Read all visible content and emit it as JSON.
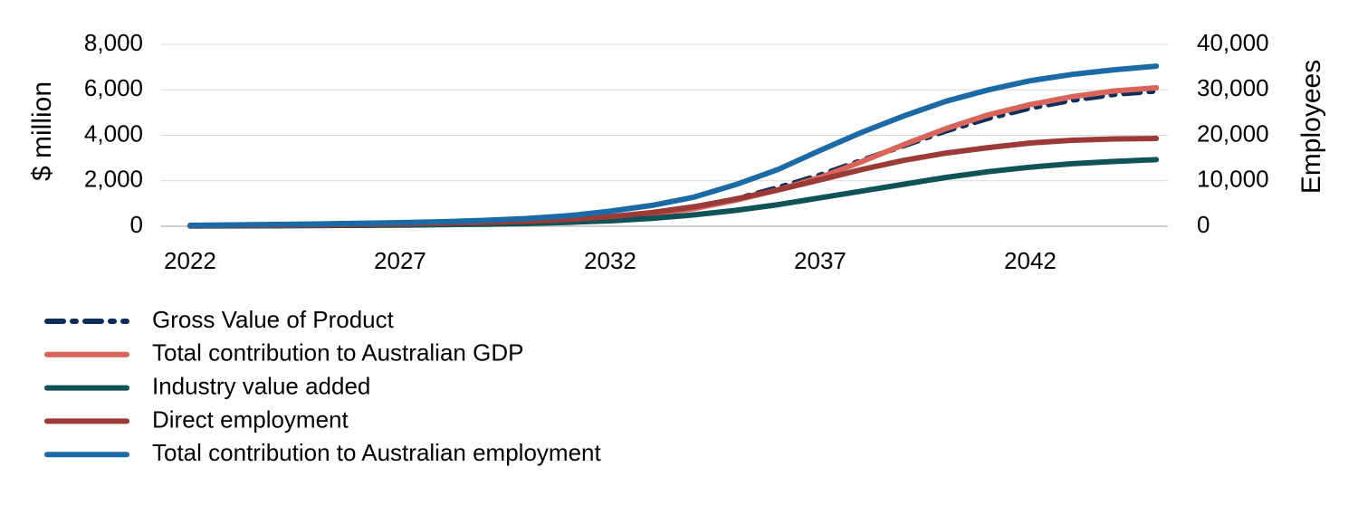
{
  "chart_data": {
    "type": "line",
    "x": [
      2022,
      2023,
      2024,
      2025,
      2026,
      2027,
      2028,
      2029,
      2030,
      2031,
      2032,
      2033,
      2034,
      2035,
      2036,
      2037,
      2038,
      2039,
      2040,
      2041,
      2042,
      2043,
      2044,
      2045
    ],
    "xlim": [
      2021.3,
      2045.6
    ],
    "xticks": [
      2022,
      2027,
      2032,
      2037,
      2042
    ],
    "ylim": [
      0,
      8000
    ],
    "yticks": [
      {
        "value": 0,
        "label": "0"
      },
      {
        "value": 2000,
        "label": "2,000"
      },
      {
        "value": 4000,
        "label": "4,000"
      },
      {
        "value": 6000,
        "label": "6,000"
      },
      {
        "value": 8000,
        "label": "8,000"
      }
    ],
    "y2lim": [
      0,
      40000
    ],
    "y2ticks": [
      {
        "value": 0,
        "label": "0"
      },
      {
        "value": 10000,
        "label": "10,000"
      },
      {
        "value": 20000,
        "label": "20,000"
      },
      {
        "value": 30000,
        "label": "30,000"
      },
      {
        "value": 40000,
        "label": "40,000"
      }
    ],
    "ylabel": "$ million",
    "y2label": "Employees",
    "grid": true,
    "series": [
      {
        "name": "Gross Value of Product",
        "color": "#0d2d5a",
        "line_style": "dash-dot",
        "values": [
          20,
          30,
          40,
          50,
          60,
          80,
          100,
          130,
          170,
          240,
          350,
          520,
          800,
          1200,
          1700,
          2250,
          2900,
          3550,
          4200,
          4750,
          5200,
          5550,
          5800,
          5950
        ]
      },
      {
        "name": "Total contribution to Australian GDP",
        "color": "#d9655a",
        "line_style": "solid",
        "values": [
          20,
          30,
          40,
          50,
          60,
          80,
          100,
          130,
          170,
          240,
          350,
          520,
          780,
          1150,
          1600,
          2150,
          2850,
          3600,
          4300,
          4900,
          5350,
          5700,
          5950,
          6090
        ]
      },
      {
        "name": "Industry value added",
        "color": "#0f5257",
        "line_style": "solid",
        "values": [
          10,
          15,
          20,
          30,
          40,
          50,
          70,
          90,
          120,
          170,
          240,
          350,
          500,
          700,
          950,
          1250,
          1550,
          1850,
          2150,
          2400,
          2600,
          2750,
          2850,
          2930
        ]
      },
      {
        "name": "Direct employment",
        "color": "#9b3a36",
        "line_style": "solid",
        "axis": "y2",
        "values": [
          100,
          150,
          200,
          300,
          400,
          500,
          650,
          850,
          1100,
          1500,
          2100,
          3000,
          4300,
          6000,
          8000,
          10200,
          12500,
          14500,
          16100,
          17300,
          18300,
          18900,
          19200,
          19300
        ]
      },
      {
        "name": "Total contribution to Australian employment",
        "color": "#1a6aa6",
        "line_style": "solid",
        "axis": "y2",
        "values": [
          200,
          300,
          400,
          500,
          650,
          800,
          1000,
          1300,
          1700,
          2300,
          3300,
          4600,
          6400,
          9200,
          12500,
          16700,
          20700,
          24300,
          27500,
          30000,
          32000,
          33400,
          34400,
          35200
        ]
      }
    ]
  }
}
